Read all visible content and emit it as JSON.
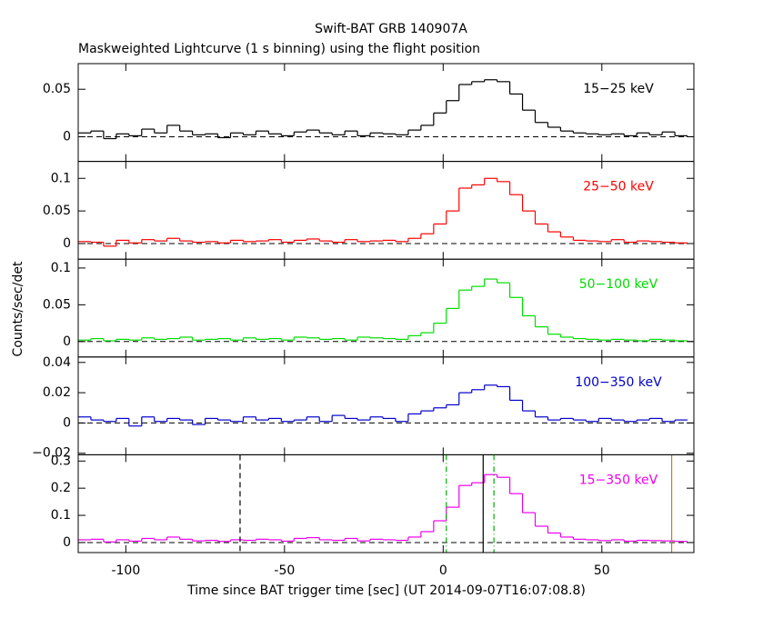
{
  "chart_data": [
    {
      "type": "step",
      "title": "Swift-BAT GRB 140907A",
      "subtitle": "Maskweighted Lightcurve (1 s binning) using the flight position",
      "x": [
        -113,
        -109,
        -105,
        -101,
        -97,
        -93,
        -89,
        -85,
        -81,
        -77,
        -73,
        -69,
        -65,
        -61,
        -57,
        -53,
        -49,
        -45,
        -41,
        -37,
        -33,
        -29,
        -25,
        -21,
        -17,
        -13,
        -9,
        -5,
        -1,
        3,
        7,
        11,
        15,
        19,
        23,
        27,
        31,
        35,
        39,
        43,
        47,
        51,
        55,
        59,
        63,
        67,
        71,
        75
      ],
      "series": [
        {
          "name": "15−25 keV",
          "color": "#000000",
          "values": [
            0.004,
            0.006,
            -0.002,
            0.003,
            0.001,
            0.008,
            0.004,
            0.012,
            0.006,
            0.002,
            0.003,
            -0.001,
            0.004,
            0.002,
            0.006,
            0.003,
            0.001,
            0.005,
            0.007,
            0.004,
            0.002,
            0.006,
            0.001,
            0.004,
            0.003,
            0.002,
            0.007,
            0.012,
            0.025,
            0.038,
            0.055,
            0.058,
            0.06,
            0.058,
            0.045,
            0.028,
            0.015,
            0.01,
            0.006,
            0.004,
            0.003,
            0.002,
            0.003,
            0.001,
            0.004,
            0.002,
            0.005,
            0.001
          ]
        }
      ],
      "xlim": [
        -115,
        79
      ],
      "ylim": [
        -0.026,
        0.077
      ],
      "yticks": [
        0,
        0.05
      ]
    },
    {
      "type": "step",
      "x": [
        -113,
        -109,
        -105,
        -101,
        -97,
        -93,
        -89,
        -85,
        -81,
        -77,
        -73,
        -69,
        -65,
        -61,
        -57,
        -53,
        -49,
        -45,
        -41,
        -37,
        -33,
        -29,
        -25,
        -21,
        -17,
        -13,
        -9,
        -5,
        -1,
        3,
        7,
        11,
        15,
        19,
        23,
        27,
        31,
        35,
        39,
        43,
        47,
        51,
        55,
        59,
        63,
        67,
        71,
        75
      ],
      "series": [
        {
          "name": "25−50 keV",
          "color": "#ff0000",
          "values": [
            0.003,
            0.002,
            -0.004,
            0.005,
            0.001,
            0.006,
            0.004,
            0.008,
            0.004,
            0.002,
            0.003,
            0.001,
            0.005,
            0.003,
            0.004,
            0.006,
            0.002,
            0.005,
            0.007,
            0.004,
            0.002,
            0.006,
            0.003,
            0.004,
            0.005,
            0.003,
            0.008,
            0.015,
            0.03,
            0.05,
            0.085,
            0.09,
            0.1,
            0.095,
            0.075,
            0.05,
            0.03,
            0.018,
            0.01,
            0.005,
            0.004,
            0.003,
            0.006,
            0.002,
            0.004,
            0.003,
            0.002,
            0.001
          ]
        }
      ],
      "xlim": [
        -115,
        79
      ],
      "ylim": [
        -0.024,
        0.126
      ],
      "yticks": [
        0,
        0.05,
        0.1
      ]
    },
    {
      "type": "step",
      "ylabel": "Counts/sec/det",
      "x": [
        -113,
        -109,
        -105,
        -101,
        -97,
        -93,
        -89,
        -85,
        -81,
        -77,
        -73,
        -69,
        -65,
        -61,
        -57,
        -53,
        -49,
        -45,
        -41,
        -37,
        -33,
        -29,
        -25,
        -21,
        -17,
        -13,
        -9,
        -5,
        -1,
        3,
        7,
        11,
        15,
        19,
        23,
        27,
        31,
        35,
        39,
        43,
        47,
        51,
        55,
        59,
        63,
        67,
        71,
        75
      ],
      "series": [
        {
          "name": "50−100 keV",
          "color": "#00dd00",
          "values": [
            0.002,
            0.004,
            0.001,
            0.003,
            0.002,
            0.005,
            0.003,
            0.004,
            0.006,
            0.002,
            0.003,
            0.004,
            0.002,
            0.005,
            0.003,
            0.004,
            0.002,
            0.006,
            0.005,
            0.003,
            0.004,
            0.002,
            0.006,
            0.005,
            0.004,
            0.003,
            0.008,
            0.012,
            0.025,
            0.045,
            0.07,
            0.075,
            0.085,
            0.08,
            0.06,
            0.035,
            0.02,
            0.01,
            0.006,
            0.004,
            0.003,
            0.002,
            0.003,
            0.002,
            0.001,
            0.003,
            0.002,
            0.001
          ]
        }
      ],
      "xlim": [
        -115,
        79
      ],
      "ylim": [
        -0.021,
        0.112
      ],
      "yticks": [
        0,
        0.05,
        0.1
      ]
    },
    {
      "type": "step",
      "x": [
        -113,
        -109,
        -105,
        -101,
        -97,
        -93,
        -89,
        -85,
        -81,
        -77,
        -73,
        -69,
        -65,
        -61,
        -57,
        -53,
        -49,
        -45,
        -41,
        -37,
        -33,
        -29,
        -25,
        -21,
        -17,
        -13,
        -9,
        -5,
        -1,
        3,
        7,
        11,
        15,
        19,
        23,
        27,
        31,
        35,
        39,
        43,
        47,
        51,
        55,
        59,
        63,
        67,
        71,
        75
      ],
      "series": [
        {
          "name": "100−350 keV",
          "color": "#0000cc",
          "values": [
            0.004,
            0.002,
            0.001,
            0.003,
            -0.002,
            0.004,
            0.001,
            0.003,
            0.002,
            -0.001,
            0.003,
            0.002,
            0.001,
            0.004,
            0.002,
            0.003,
            0.001,
            0.002,
            0.004,
            0.001,
            0.005,
            0.003,
            0.002,
            0.004,
            0.003,
            0.001,
            0.006,
            0.008,
            0.01,
            0.012,
            0.02,
            0.022,
            0.025,
            0.024,
            0.015,
            0.008,
            0.004,
            0.002,
            0.003,
            0.002,
            0.001,
            0.003,
            0.002,
            0.001,
            0.002,
            0.003,
            0.001,
            0.002
          ]
        }
      ],
      "xlim": [
        -115,
        79
      ],
      "ylim": [
        -0.021,
        0.0436
      ],
      "yticks": [
        {
          "value": -0.02,
          "label": "−0.02"
        },
        0,
        0.02,
        0.04
      ]
    },
    {
      "type": "step",
      "xlabel": "Time since BAT trigger time [sec] (UT 2014-09-07T16:07:08.8)",
      "x": [
        -113,
        -109,
        -105,
        -101,
        -97,
        -93,
        -89,
        -85,
        -81,
        -77,
        -73,
        -69,
        -65,
        -61,
        -57,
        -53,
        -49,
        -45,
        -41,
        -37,
        -33,
        -29,
        -25,
        -21,
        -17,
        -13,
        -9,
        -5,
        -1,
        3,
        7,
        11,
        15,
        19,
        23,
        27,
        31,
        35,
        39,
        43,
        47,
        51,
        55,
        59,
        63,
        67,
        71,
        75
      ],
      "series": [
        {
          "name": "15−350 keV",
          "color": "#ee00ee",
          "values": [
            0.01,
            0.012,
            0.002,
            0.01,
            0.005,
            0.015,
            0.01,
            0.02,
            0.012,
            0.006,
            0.008,
            0.004,
            0.01,
            0.008,
            0.012,
            0.01,
            0.005,
            0.015,
            0.018,
            0.01,
            0.008,
            0.015,
            0.006,
            0.012,
            0.01,
            0.008,
            0.02,
            0.04,
            0.08,
            0.13,
            0.21,
            0.22,
            0.25,
            0.24,
            0.18,
            0.11,
            0.06,
            0.035,
            0.02,
            0.012,
            0.01,
            0.007,
            0.01,
            0.005,
            0.008,
            0.007,
            0.006,
            0.004
          ]
        }
      ],
      "xlim": [
        -115,
        79
      ],
      "ylim": [
        -0.037,
        0.323
      ],
      "yticks": [
        0,
        0.1,
        0.2,
        0.3
      ],
      "xticks": [
        -100,
        -50,
        0,
        50
      ],
      "vlines": [
        {
          "x": -64,
          "color": "#000000",
          "style": "dashed"
        },
        {
          "x": 1,
          "color": "#00aa00",
          "style": "dashdot"
        },
        {
          "x": 12.6,
          "color": "#000000",
          "style": "solid"
        },
        {
          "x": 16,
          "color": "#00aa00",
          "style": "dashdot"
        },
        {
          "x": 72,
          "color": "#dd7700",
          "style": "solid"
        }
      ]
    }
  ]
}
